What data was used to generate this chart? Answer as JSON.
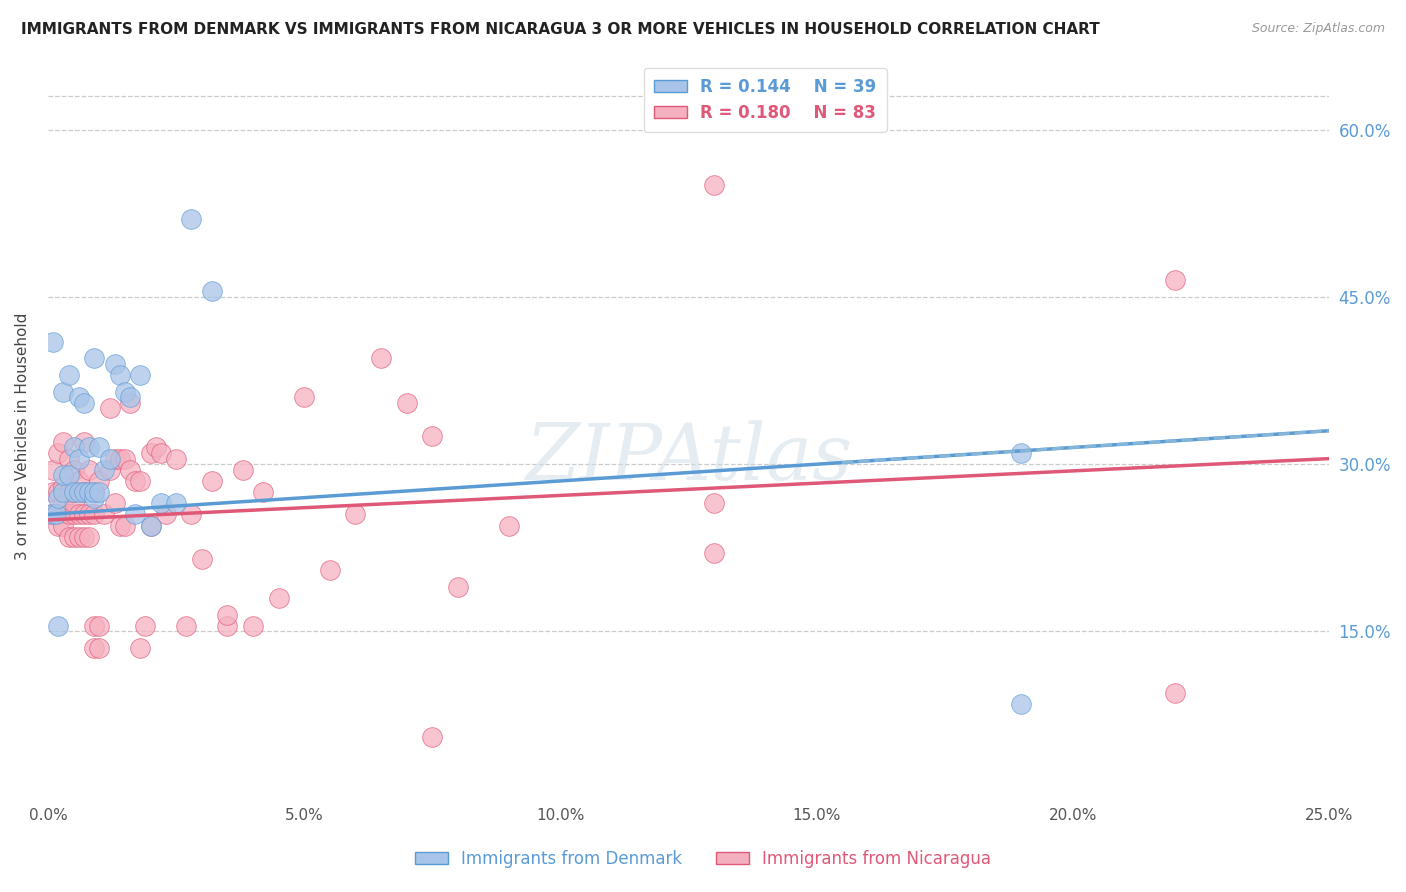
{
  "title": "IMMIGRANTS FROM DENMARK VS IMMIGRANTS FROM NICARAGUA 3 OR MORE VEHICLES IN HOUSEHOLD CORRELATION CHART",
  "source": "Source: ZipAtlas.com",
  "ylabel": "3 or more Vehicles in Household",
  "watermark": "ZIPAtlas",
  "legend_denmark_r": "R = 0.144",
  "legend_denmark_n": "N = 39",
  "legend_nicaragua_r": "R = 0.180",
  "legend_nicaragua_n": "N = 83",
  "xlim": [
    0.0,
    0.25
  ],
  "ylim": [
    0.0,
    0.65
  ],
  "xticks": [
    0.0,
    0.05,
    0.1,
    0.15,
    0.2,
    0.25
  ],
  "ytick_labels_right": [
    "15.0%",
    "30.0%",
    "45.0%",
    "60.0%"
  ],
  "ytick_vals_right": [
    0.15,
    0.3,
    0.45,
    0.6
  ],
  "xtick_labels": [
    "0.0%",
    "5.0%",
    "10.0%",
    "15.0%",
    "20.0%",
    "25.0%"
  ],
  "color_denmark": "#a8c4e8",
  "color_nicaragua": "#f5b0c0",
  "color_trendline_denmark": "#5b9bd5",
  "color_trendline_nicaragua": "#e05878",
  "color_dashed": "#8ab8d8",
  "color_axis_right": "#5b9bd5",
  "color_title": "#222222",
  "color_source": "#999999",
  "color_grid": "#cccccc",
  "background_color": "#ffffff",
  "denmark_x": [
    0.0008,
    0.001,
    0.0015,
    0.002,
    0.002,
    0.003,
    0.003,
    0.003,
    0.004,
    0.004,
    0.005,
    0.005,
    0.006,
    0.006,
    0.006,
    0.007,
    0.007,
    0.008,
    0.008,
    0.009,
    0.009,
    0.009,
    0.01,
    0.01,
    0.011,
    0.012,
    0.013,
    0.014,
    0.015,
    0.016,
    0.017,
    0.018,
    0.02,
    0.022,
    0.025,
    0.028,
    0.032,
    0.19,
    0.19
  ],
  "denmark_y": [
    0.255,
    0.41,
    0.255,
    0.155,
    0.27,
    0.275,
    0.29,
    0.365,
    0.29,
    0.38,
    0.275,
    0.315,
    0.275,
    0.305,
    0.36,
    0.275,
    0.355,
    0.275,
    0.315,
    0.27,
    0.275,
    0.395,
    0.275,
    0.315,
    0.295,
    0.305,
    0.39,
    0.38,
    0.365,
    0.36,
    0.255,
    0.38,
    0.245,
    0.265,
    0.265,
    0.52,
    0.455,
    0.31,
    0.085
  ],
  "nicaragua_x": [
    0.0005,
    0.001,
    0.001,
    0.001,
    0.002,
    0.002,
    0.002,
    0.002,
    0.003,
    0.003,
    0.003,
    0.003,
    0.004,
    0.004,
    0.004,
    0.004,
    0.005,
    0.005,
    0.005,
    0.005,
    0.005,
    0.006,
    0.006,
    0.006,
    0.007,
    0.007,
    0.007,
    0.007,
    0.008,
    0.008,
    0.008,
    0.009,
    0.009,
    0.009,
    0.009,
    0.01,
    0.01,
    0.01,
    0.011,
    0.012,
    0.012,
    0.013,
    0.013,
    0.014,
    0.014,
    0.015,
    0.015,
    0.016,
    0.016,
    0.017,
    0.018,
    0.018,
    0.019,
    0.02,
    0.02,
    0.021,
    0.022,
    0.023,
    0.025,
    0.027,
    0.028,
    0.03,
    0.032,
    0.035,
    0.035,
    0.038,
    0.04,
    0.042,
    0.045,
    0.05,
    0.055,
    0.06,
    0.065,
    0.07,
    0.075,
    0.08,
    0.09,
    0.22,
    0.22,
    0.13,
    0.13,
    0.075,
    0.13
  ],
  "nicaragua_y": [
    0.255,
    0.255,
    0.275,
    0.295,
    0.245,
    0.255,
    0.275,
    0.31,
    0.245,
    0.265,
    0.28,
    0.32,
    0.235,
    0.255,
    0.275,
    0.305,
    0.235,
    0.255,
    0.265,
    0.275,
    0.295,
    0.235,
    0.255,
    0.285,
    0.235,
    0.255,
    0.275,
    0.32,
    0.235,
    0.255,
    0.295,
    0.135,
    0.155,
    0.255,
    0.275,
    0.135,
    0.155,
    0.285,
    0.255,
    0.295,
    0.35,
    0.265,
    0.305,
    0.245,
    0.305,
    0.245,
    0.305,
    0.295,
    0.355,
    0.285,
    0.285,
    0.135,
    0.155,
    0.245,
    0.31,
    0.315,
    0.31,
    0.255,
    0.305,
    0.155,
    0.255,
    0.215,
    0.285,
    0.155,
    0.165,
    0.295,
    0.155,
    0.275,
    0.18,
    0.36,
    0.205,
    0.255,
    0.395,
    0.355,
    0.325,
    0.19,
    0.245,
    0.095,
    0.465,
    0.22,
    0.265,
    0.055,
    0.55
  ]
}
